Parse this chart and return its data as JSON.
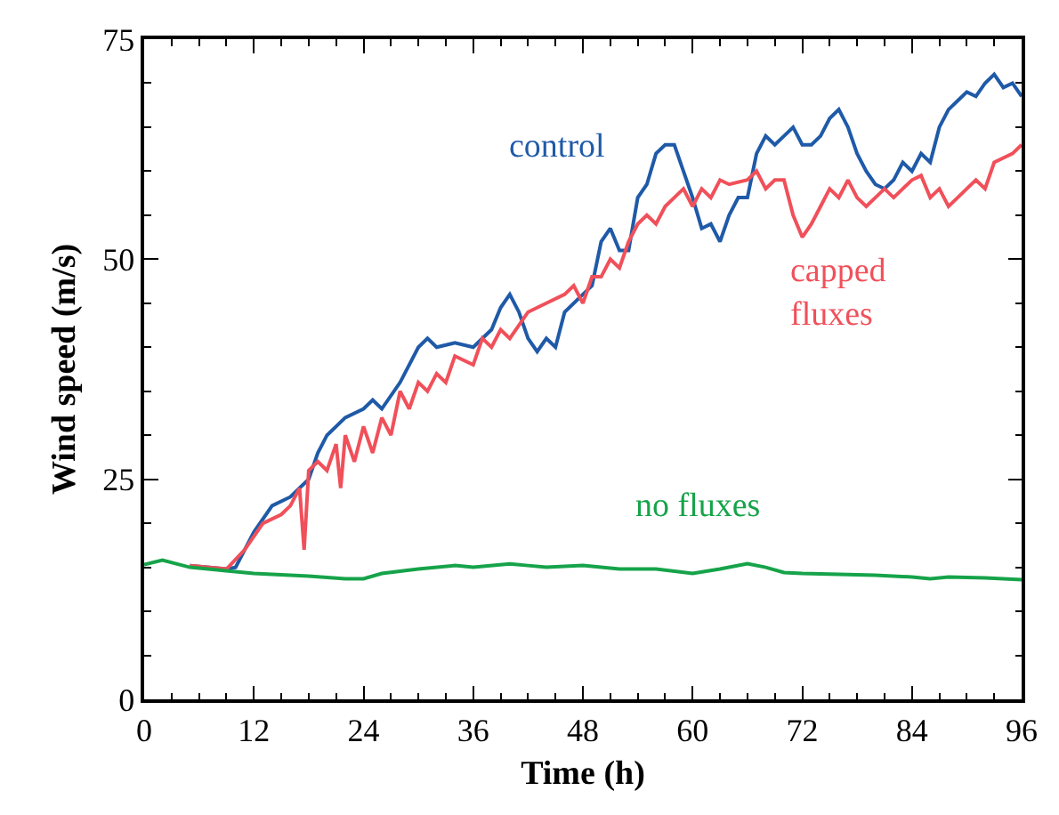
{
  "chart_data": {
    "type": "line",
    "xlabel": "Time (h)",
    "ylabel": "Wind speed (m/s)",
    "xlim": [
      0,
      96
    ],
    "xticks": [
      0,
      12,
      24,
      36,
      48,
      60,
      72,
      84,
      96
    ],
    "ylim": [
      0,
      75
    ],
    "yticks": [
      0,
      25,
      50,
      75
    ],
    "legend": false,
    "line_style": "solid",
    "marker": "none",
    "series": [
      {
        "name": "control",
        "color": "#1f5aa8",
        "x": [
          5,
          9,
          10,
          12,
          14,
          16,
          17,
          18,
          19,
          20,
          22,
          24,
          25,
          26,
          28,
          30,
          31,
          32,
          34,
          36,
          38,
          39,
          40,
          41,
          42,
          43,
          44,
          45,
          46,
          48,
          49,
          50,
          51,
          52,
          53,
          54,
          55,
          56,
          57,
          58,
          59,
          60,
          61,
          62,
          63,
          64,
          65,
          66,
          67,
          68,
          69,
          70,
          71,
          72,
          73,
          74,
          75,
          76,
          77,
          78,
          79,
          80,
          81,
          82,
          83,
          84,
          85,
          86,
          87,
          88,
          89,
          90,
          91,
          92,
          93,
          94,
          95,
          96
        ],
        "values": [
          15.2,
          14.8,
          15,
          19,
          22,
          23,
          24,
          25,
          28,
          30,
          32,
          33,
          34,
          33,
          36,
          40,
          41,
          40,
          40.5,
          40,
          42,
          44.5,
          46,
          44,
          41,
          39.5,
          41,
          40,
          44,
          46,
          47,
          52,
          53.5,
          51,
          51,
          57,
          58.5,
          62,
          63,
          63,
          60,
          57,
          53.5,
          54,
          52,
          55,
          57,
          57,
          62,
          64,
          63,
          64,
          65,
          63,
          63,
          64,
          66,
          67,
          65,
          62,
          60,
          58.5,
          58,
          59,
          61,
          60,
          62,
          61,
          65,
          67,
          68,
          69,
          68.5,
          70,
          71,
          69.5,
          70,
          68.5
        ]
      },
      {
        "name": "capped\nfluxes",
        "color": "#f0505a",
        "x": [
          5,
          9,
          11,
          13,
          15,
          16,
          17,
          17.5,
          18,
          19,
          20,
          21,
          21.5,
          22,
          23,
          24,
          25,
          26,
          27,
          28,
          29,
          30,
          31,
          32,
          33,
          34,
          36,
          37,
          38,
          39,
          40,
          42,
          44,
          46,
          47,
          48,
          49,
          50,
          51,
          52,
          53,
          54,
          55,
          56,
          57,
          58,
          59,
          60,
          61,
          62,
          63,
          64,
          66,
          67,
          68,
          69,
          70,
          71,
          72,
          73,
          74,
          75,
          76,
          77,
          78,
          79,
          80,
          81,
          82,
          83,
          84,
          85,
          86,
          87,
          88,
          89,
          90,
          91,
          92,
          93,
          94,
          95,
          96
        ],
        "values": [
          15.2,
          14.8,
          17,
          20,
          21,
          22,
          24,
          17,
          26,
          27,
          26,
          29,
          24,
          30,
          27,
          31,
          28,
          32,
          30,
          35,
          33,
          36,
          35,
          37,
          36,
          39,
          38,
          41,
          40,
          42,
          41,
          44,
          45,
          46,
          47,
          45,
          48,
          48,
          50,
          49,
          52,
          54,
          55,
          54,
          56,
          57,
          58,
          56,
          58,
          57,
          59,
          58.5,
          59,
          60,
          58,
          59,
          59,
          55,
          52.5,
          54,
          56,
          58,
          57,
          59,
          57,
          56,
          57,
          58,
          57,
          58,
          59,
          59.5,
          57,
          58,
          56,
          57,
          58,
          59,
          58,
          61,
          61.5,
          62,
          63
        ]
      },
      {
        "name": "no fluxes",
        "color": "#16a34a",
        "x": [
          0,
          2,
          5,
          8,
          12,
          18,
          22,
          24,
          26,
          30,
          34,
          36,
          40,
          42,
          44,
          48,
          52,
          56,
          60,
          63,
          66,
          68,
          70,
          72,
          76,
          80,
          84,
          86,
          88,
          92,
          96
        ],
        "values": [
          15.3,
          15.8,
          15,
          14.7,
          14.3,
          14,
          13.7,
          13.7,
          14.3,
          14.8,
          15.2,
          15,
          15.4,
          15.2,
          15,
          15.2,
          14.8,
          14.8,
          14.3,
          14.8,
          15.4,
          15,
          14.4,
          14.3,
          14.2,
          14.1,
          13.9,
          13.7,
          13.9,
          13.8,
          13.6
        ]
      }
    ]
  }
}
